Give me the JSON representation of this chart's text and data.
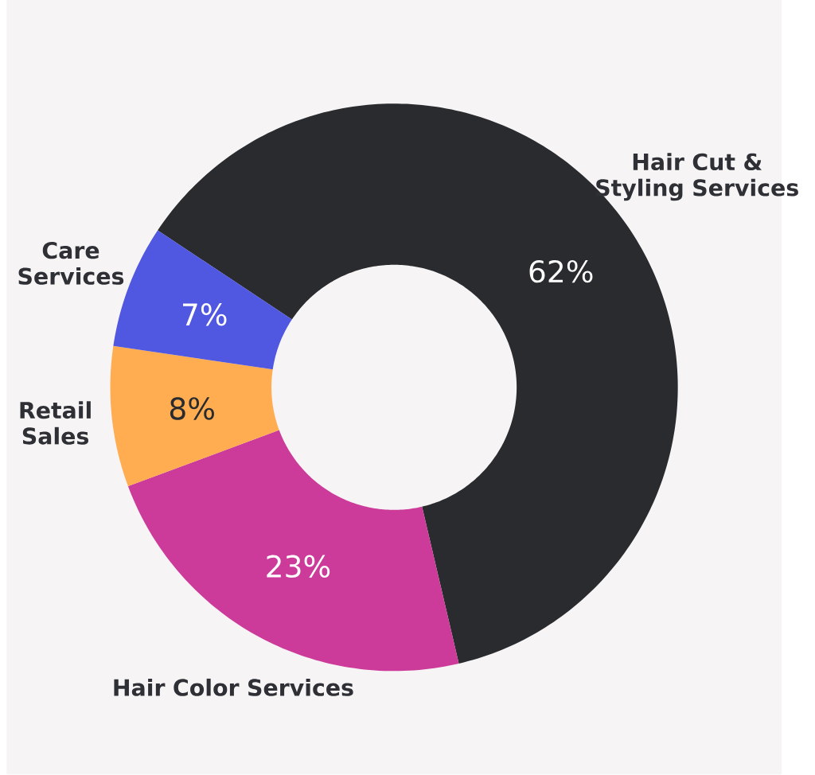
{
  "chart_data": {
    "type": "donut",
    "categories": [
      "Hair Cut & Styling Services",
      "Hair Color Services",
      "Retail Sales",
      "Care Services"
    ],
    "values": [
      62,
      23,
      8,
      7
    ],
    "colors": [
      "#2a2b2e",
      "#cc3b9a",
      "#ffad50",
      "#5057e0"
    ],
    "value_labels": [
      "62%",
      "23%",
      "8%",
      "7%"
    ]
  }
}
